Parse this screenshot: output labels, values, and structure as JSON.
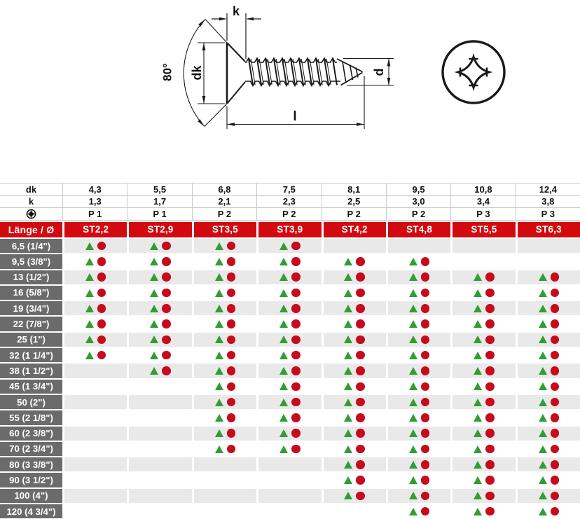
{
  "drawing": {
    "dimension_labels": {
      "k": "k",
      "dk": "dk",
      "d": "d",
      "l": "l",
      "angle": "80°"
    },
    "views": [
      "screw-side-view",
      "phillips-head-view"
    ]
  },
  "table": {
    "spec_rows": [
      {
        "key": "dk",
        "label": "dk",
        "values": [
          "4,3",
          "5,5",
          "6,8",
          "7,5",
          "8,1",
          "9,5",
          "10,8",
          "12,4"
        ]
      },
      {
        "key": "k",
        "label": "k",
        "values": [
          "1,3",
          "1,7",
          "2,1",
          "2,3",
          "2,5",
          "3,0",
          "3,4",
          "3,8"
        ]
      },
      {
        "key": "phillips",
        "label": "",
        "icon": "phillips-icon",
        "values": [
          "P 1",
          "P 1",
          "P 2",
          "P 2",
          "P 2",
          "P 2",
          "P 3",
          "P 3"
        ]
      }
    ],
    "header_row": {
      "label": "Länge / Ø",
      "columns": [
        "ST2,2",
        "ST2,9",
        "ST3,5",
        "ST3,9",
        "ST4,2",
        "ST4,8",
        "ST5,5",
        "ST6,3"
      ]
    },
    "marker_icons": [
      "triangle-marker",
      "circle-marker"
    ],
    "rows": [
      {
        "label": "6,5 (1/4\")",
        "cells": [
          1,
          1,
          1,
          1,
          0,
          0,
          0,
          0
        ]
      },
      {
        "label": "9,5 (3/8\")",
        "cells": [
          1,
          1,
          1,
          1,
          1,
          1,
          0,
          0
        ]
      },
      {
        "label": "13 (1/2\")",
        "cells": [
          1,
          1,
          1,
          1,
          1,
          1,
          1,
          1
        ]
      },
      {
        "label": "16 (5/8\")",
        "cells": [
          1,
          1,
          1,
          1,
          1,
          1,
          1,
          1
        ]
      },
      {
        "label": "19 (3/4\")",
        "cells": [
          1,
          1,
          1,
          1,
          1,
          1,
          1,
          1
        ]
      },
      {
        "label": "22 (7/8\")",
        "cells": [
          1,
          1,
          1,
          1,
          1,
          1,
          1,
          1
        ]
      },
      {
        "label": "25 (1\")",
        "cells": [
          1,
          1,
          1,
          1,
          1,
          1,
          1,
          1
        ]
      },
      {
        "label": "32 (1 1/4\")",
        "cells": [
          1,
          1,
          1,
          1,
          1,
          1,
          1,
          1
        ]
      },
      {
        "label": "38 (1 1/2\")",
        "cells": [
          0,
          1,
          1,
          1,
          1,
          1,
          1,
          1
        ]
      },
      {
        "label": "45 (1 3/4\")",
        "cells": [
          0,
          0,
          1,
          1,
          1,
          1,
          1,
          1
        ]
      },
      {
        "label": "50 (2\")",
        "cells": [
          0,
          0,
          1,
          1,
          1,
          1,
          1,
          1
        ]
      },
      {
        "label": "55 (2 1/8\")",
        "cells": [
          0,
          0,
          1,
          1,
          1,
          1,
          1,
          1
        ]
      },
      {
        "label": "60 (2 3/8\")",
        "cells": [
          0,
          0,
          1,
          1,
          1,
          1,
          1,
          1
        ]
      },
      {
        "label": "70 (2 3/4\")",
        "cells": [
          0,
          0,
          1,
          1,
          1,
          1,
          1,
          1
        ]
      },
      {
        "label": "80 (3 3/8\")",
        "cells": [
          0,
          0,
          0,
          0,
          1,
          1,
          1,
          1
        ]
      },
      {
        "label": "90 (3 1/2\")",
        "cells": [
          0,
          0,
          0,
          0,
          1,
          1,
          1,
          1
        ]
      },
      {
        "label": "100 (4\")",
        "cells": [
          0,
          0,
          0,
          0,
          1,
          1,
          1,
          1
        ]
      },
      {
        "label": "120 (4 3/4\")",
        "cells": [
          0,
          0,
          0,
          0,
          0,
          1,
          1,
          1
        ]
      }
    ],
    "colors": {
      "header_red": "#d20a10",
      "label_gray": "#6b6b6b",
      "row_alt": "#e9e9e9",
      "triangle_green": "#2f9e33",
      "circle_red": "#c60b1e",
      "grid_line": "#c9c9c9"
    }
  }
}
